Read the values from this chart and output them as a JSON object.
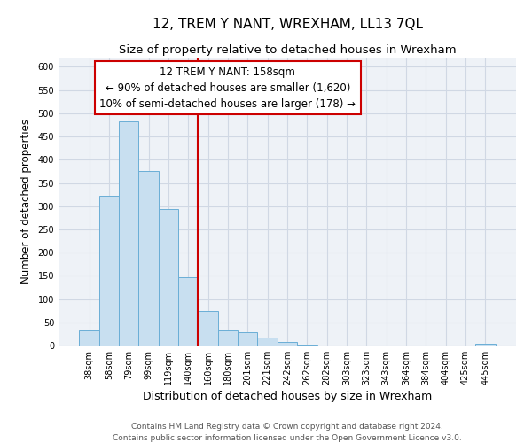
{
  "title": "12, TREM Y NANT, WREXHAM, LL13 7QL",
  "subtitle": "Size of property relative to detached houses in Wrexham",
  "xlabel": "Distribution of detached houses by size in Wrexham",
  "ylabel": "Number of detached properties",
  "bar_labels": [
    "38sqm",
    "58sqm",
    "79sqm",
    "99sqm",
    "119sqm",
    "140sqm",
    "160sqm",
    "180sqm",
    "201sqm",
    "221sqm",
    "242sqm",
    "262sqm",
    "282sqm",
    "303sqm",
    "323sqm",
    "343sqm",
    "364sqm",
    "384sqm",
    "404sqm",
    "425sqm",
    "445sqm"
  ],
  "bar_values": [
    32,
    323,
    483,
    375,
    293,
    146,
    75,
    32,
    29,
    17,
    7,
    1,
    0,
    0,
    0,
    0,
    0,
    0,
    0,
    0,
    3
  ],
  "bar_color": "#c8dff0",
  "bar_edge_color": "#6aaed6",
  "vline_color": "#cc0000",
  "annotation_text": "12 TREM Y NANT: 158sqm\n← 90% of detached houses are smaller (1,620)\n10% of semi-detached houses are larger (178) →",
  "annotation_box_edgecolor": "#cc0000",
  "annotation_box_facecolor": "#ffffff",
  "ylim": [
    0,
    620
  ],
  "yticks": [
    0,
    50,
    100,
    150,
    200,
    250,
    300,
    350,
    400,
    450,
    500,
    550,
    600
  ],
  "footer_line1": "Contains HM Land Registry data © Crown copyright and database right 2024.",
  "footer_line2": "Contains public sector information licensed under the Open Government Licence v3.0.",
  "title_fontsize": 11,
  "subtitle_fontsize": 9.5,
  "xlabel_fontsize": 9,
  "ylabel_fontsize": 8.5,
  "footer_fontsize": 6.5,
  "tick_fontsize": 7,
  "annotation_fontsize": 8.5,
  "bg_color": "#eef2f7",
  "grid_color": "#d0d8e4"
}
